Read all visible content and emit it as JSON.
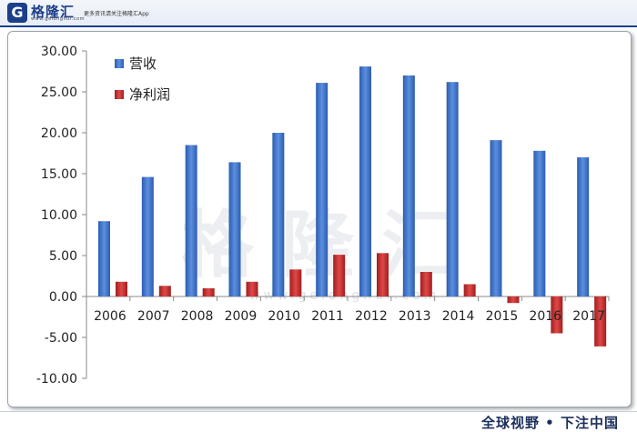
{
  "header": {
    "logo_letter": "G",
    "logo_name": "格隆汇",
    "logo_sub": "www.gelonghui.com",
    "slogan": "更多资讯请关注格隆汇App"
  },
  "watermark": {
    "text": "格隆汇",
    "url": "www.gelonghui.com"
  },
  "footer": {
    "slogan": "全球视野 • 下注中国"
  },
  "colors": {
    "revenue": "#3a6fc4",
    "profit": "#c02828",
    "axis": "#8a8a8a",
    "brand": "#1c3f8a"
  },
  "chart_data": {
    "type": "bar",
    "categories": [
      "2006",
      "2007",
      "2008",
      "2009",
      "2010",
      "2011",
      "2012",
      "2013",
      "2014",
      "2015",
      "2016",
      "2017"
    ],
    "series": [
      {
        "name": "营收",
        "values": [
          9.2,
          14.6,
          18.5,
          16.4,
          20.0,
          26.1,
          28.1,
          27.0,
          26.2,
          19.1,
          17.8,
          17.0
        ]
      },
      {
        "name": "净利润",
        "values": [
          1.8,
          1.3,
          1.0,
          1.8,
          3.3,
          5.1,
          5.3,
          3.0,
          1.5,
          -0.8,
          -4.5,
          -6.1
        ]
      }
    ],
    "yticks": [
      "30.00",
      "25.00",
      "20.00",
      "15.00",
      "10.00",
      "5.00",
      "0.00",
      "-5.00",
      "-10.00"
    ],
    "ylim": [
      -10,
      30
    ],
    "legend_position": "top-left",
    "grid": false
  }
}
